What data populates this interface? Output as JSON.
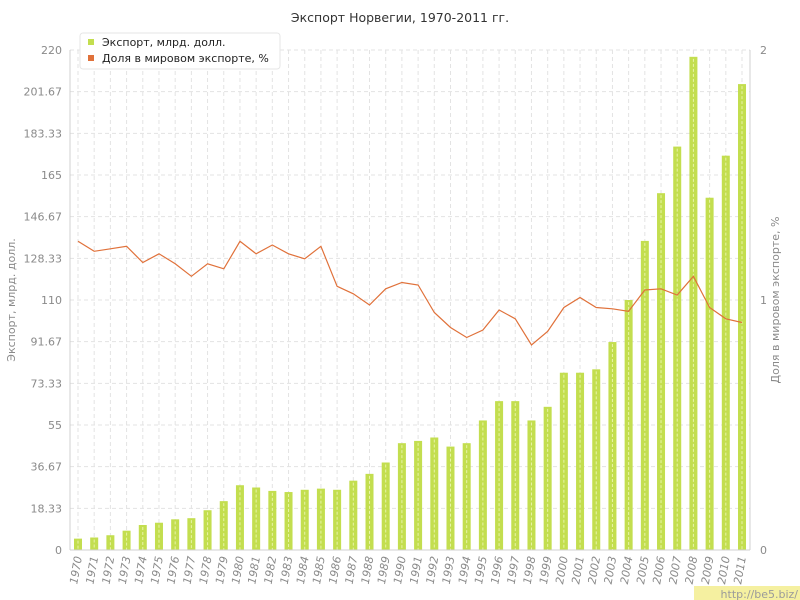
{
  "chart_data": {
    "type": "bar",
    "title": "Экспорт Норвегии, 1970-2011 гг.",
    "ylabel": "Экспорт, млрд. долл.",
    "y2label": "Доля в мировом экспорте, %",
    "ylim": [
      0,
      220
    ],
    "y2lim": [
      0,
      2
    ],
    "yticks": [
      "0",
      "18.33",
      "36.67",
      "55",
      "73.33",
      "91.67",
      "110",
      "128.33",
      "146.67",
      "165",
      "183.33",
      "201.67",
      "220"
    ],
    "y2ticks": [
      "0",
      "1",
      "2"
    ],
    "grid": true,
    "legend_position": "top-left",
    "categories": [
      "1970",
      "1971",
      "1972",
      "1973",
      "1974",
      "1975",
      "1976",
      "1977",
      "1978",
      "1979",
      "1980",
      "1981",
      "1982",
      "1983",
      "1984",
      "1985",
      "1986",
      "1987",
      "1988",
      "1989",
      "1990",
      "1991",
      "1992",
      "1993",
      "1994",
      "1995",
      "1996",
      "1997",
      "1998",
      "1999",
      "2000",
      "2001",
      "2002",
      "2003",
      "2004",
      "2005",
      "2006",
      "2007",
      "2008",
      "2009",
      "2010",
      "2011"
    ],
    "series": [
      {
        "name": "Экспорт, млрд. долл.",
        "type": "bar",
        "axis": "left",
        "color": "#c3de4f",
        "values": [
          5,
          5.5,
          6.5,
          8.5,
          11,
          12,
          13.5,
          14,
          17.5,
          21.5,
          28.5,
          27.5,
          26,
          25.5,
          26.5,
          27,
          26.5,
          30.5,
          33.5,
          38.5,
          47,
          48,
          49.5,
          45.5,
          47,
          57,
          65.5,
          65.5,
          57,
          63,
          78,
          78,
          79.5,
          91.5,
          110,
          136,
          157,
          177.5,
          217,
          155,
          173.5,
          205
        ]
      },
      {
        "name": "Доля в мировом экспорте, %",
        "type": "line",
        "axis": "right",
        "color": "#e0713a",
        "values": [
          1.235,
          1.195,
          1.205,
          1.215,
          1.15,
          1.185,
          1.145,
          1.095,
          1.145,
          1.125,
          1.235,
          1.185,
          1.22,
          1.185,
          1.165,
          1.215,
          1.055,
          1.025,
          0.98,
          1.045,
          1.07,
          1.06,
          0.95,
          0.89,
          0.85,
          0.88,
          0.96,
          0.925,
          0.82,
          0.875,
          0.97,
          1.01,
          0.97,
          0.965,
          0.955,
          1.04,
          1.045,
          1.02,
          1.095,
          0.97,
          0.925,
          0.91
        ]
      }
    ]
  },
  "watermark": "http://be5.biz/"
}
